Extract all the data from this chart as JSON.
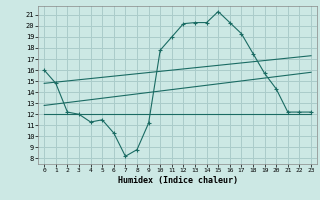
{
  "title": "",
  "xlabel": "Humidex (Indice chaleur)",
  "bg_color": "#cce8e4",
  "grid_color": "#aaccca",
  "line_color": "#1a6b63",
  "spine_color": "#888888",
  "xlim": [
    -0.5,
    23.5
  ],
  "ylim": [
    7.5,
    21.8
  ],
  "yticks": [
    8,
    9,
    10,
    11,
    12,
    13,
    14,
    15,
    16,
    17,
    18,
    19,
    20,
    21
  ],
  "xticks": [
    0,
    1,
    2,
    3,
    4,
    5,
    6,
    7,
    8,
    9,
    10,
    11,
    12,
    13,
    14,
    15,
    16,
    17,
    18,
    19,
    20,
    21,
    22,
    23
  ],
  "line1_x": [
    0,
    1,
    2,
    3,
    4,
    5,
    6,
    7,
    8,
    9,
    10,
    11,
    12,
    13,
    14,
    15,
    16,
    17,
    18,
    19,
    20,
    21,
    22,
    23
  ],
  "line1_y": [
    16.0,
    14.8,
    12.2,
    12.0,
    11.3,
    11.5,
    10.3,
    8.2,
    8.8,
    11.2,
    17.8,
    19.0,
    20.2,
    20.3,
    20.3,
    21.3,
    20.3,
    19.3,
    17.5,
    15.7,
    14.3,
    12.2,
    12.2,
    12.2
  ],
  "line2_x": [
    0,
    23
  ],
  "line2_y": [
    14.8,
    17.3
  ],
  "line3_x": [
    0,
    23
  ],
  "line3_y": [
    12.8,
    15.8
  ],
  "line4_x": [
    0,
    23
  ],
  "line4_y": [
    12.0,
    12.0
  ]
}
